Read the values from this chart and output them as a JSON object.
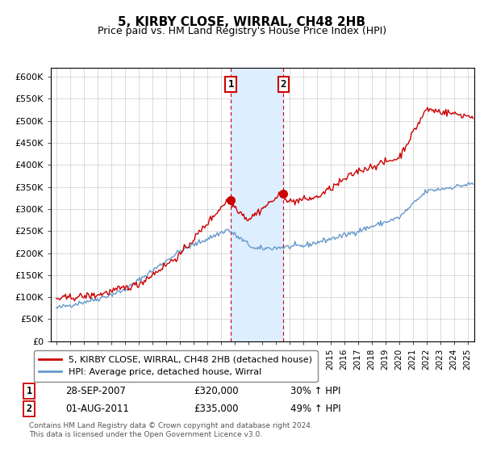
{
  "title": "5, KIRBY CLOSE, WIRRAL, CH48 2HB",
  "subtitle": "Price paid vs. HM Land Registry's House Price Index (HPI)",
  "ylim": [
    0,
    620000
  ],
  "yticks": [
    0,
    50000,
    100000,
    150000,
    200000,
    250000,
    300000,
    350000,
    400000,
    450000,
    500000,
    550000,
    600000
  ],
  "ytick_labels": [
    "£0",
    "£50K",
    "£100K",
    "£150K",
    "£200K",
    "£250K",
    "£300K",
    "£350K",
    "£400K",
    "£450K",
    "£500K",
    "£550K",
    "£600K"
  ],
  "sale1_date": 2007.74,
  "sale1_price": 320000,
  "sale1_label": "28-SEP-2007",
  "sale1_price_str": "£320,000",
  "sale1_pct": "30% ↑ HPI",
  "sale2_date": 2011.58,
  "sale2_price": 335000,
  "sale2_label": "01-AUG-2011",
  "sale2_price_str": "£335,000",
  "sale2_pct": "49% ↑ HPI",
  "legend_line1": "5, KIRBY CLOSE, WIRRAL, CH48 2HB (detached house)",
  "legend_line2": "HPI: Average price, detached house, Wirral",
  "footnote1": "Contains HM Land Registry data © Crown copyright and database right 2024.",
  "footnote2": "This data is licensed under the Open Government Licence v3.0.",
  "hpi_color": "#6699cc",
  "sale_color": "#cc0000",
  "shading_color": "#ddeeff",
  "marker_box_color": "#cc0000",
  "grid_color": "#cccccc",
  "bg_color": "#ffffff"
}
